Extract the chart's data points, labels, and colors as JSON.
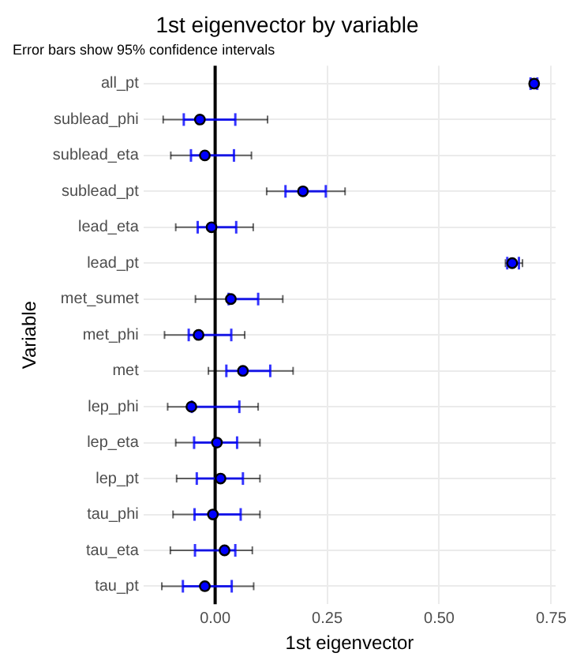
{
  "chart_data": {
    "type": "scatter",
    "orientation": "horizontal",
    "title": "1st eigenvector by variable",
    "subtitle": "Error bars show 95% confidence intervals",
    "xlabel": "1st eigenvector",
    "ylabel": "Variable",
    "categories": [
      "all_pt",
      "sublead_phi",
      "sublead_eta",
      "sublead_pt",
      "lead_eta",
      "lead_pt",
      "met_sumet",
      "met_phi",
      "met",
      "lep_phi",
      "lep_eta",
      "lep_pt",
      "tau_phi",
      "tau_eta",
      "tau_pt"
    ],
    "series": [
      {
        "color": "#000000",
        "values": [
          0.712,
          -0.034,
          -0.023,
          0.196,
          -0.008,
          0.663,
          0.035,
          -0.037,
          0.062,
          -0.053,
          0.004,
          0.012,
          -0.005,
          0.021,
          -0.023
        ],
        "errors": [
          [
            0.703,
            0.72
          ],
          [
            -0.116,
            0.117
          ],
          [
            -0.099,
            0.081
          ],
          [
            0.115,
            0.29
          ],
          [
            -0.088,
            0.085
          ],
          [
            0.648,
            0.686
          ],
          [
            -0.044,
            0.151
          ],
          [
            -0.113,
            0.066
          ],
          [
            -0.015,
            0.174
          ],
          [
            -0.106,
            0.096
          ],
          [
            -0.088,
            0.1
          ],
          [
            -0.086,
            0.1
          ],
          [
            -0.094,
            0.1
          ],
          [
            -0.1,
            0.083
          ],
          [
            -0.119,
            0.086
          ]
        ]
      },
      {
        "color": "#0000ff",
        "values": [
          0.712,
          -0.034,
          -0.023,
          0.196,
          -0.008,
          0.663,
          0.035,
          -0.037,
          0.062,
          -0.053,
          0.004,
          0.012,
          -0.005,
          0.021,
          -0.023
        ],
        "errors": [
          [
            0.704,
            0.719
          ],
          [
            -0.07,
            0.045
          ],
          [
            -0.054,
            0.042
          ],
          [
            0.157,
            0.247
          ],
          [
            -0.039,
            0.047
          ],
          [
            0.652,
            0.678
          ],
          [
            0.03,
            0.096
          ],
          [
            -0.059,
            0.036
          ],
          [
            0.025,
            0.123
          ],
          [
            -0.052,
            0.054
          ],
          [
            -0.047,
            0.049
          ],
          [
            -0.041,
            0.062
          ],
          [
            -0.046,
            0.057
          ],
          [
            -0.045,
            0.045
          ],
          [
            -0.072,
            0.037
          ]
        ]
      }
    ],
    "xlim": [
      -0.16,
      0.76
    ],
    "xticks": [
      {
        "value": 0,
        "label": "0.00"
      },
      {
        "value": 0.25,
        "label": "0.25"
      },
      {
        "value": 0.5,
        "label": "0.50"
      },
      {
        "value": 0.75,
        "label": "0.75"
      }
    ],
    "ref_lines": [
      {
        "axis": "x",
        "value": 0,
        "color": "#000000"
      }
    ],
    "grid": true,
    "marker": "circle"
  }
}
